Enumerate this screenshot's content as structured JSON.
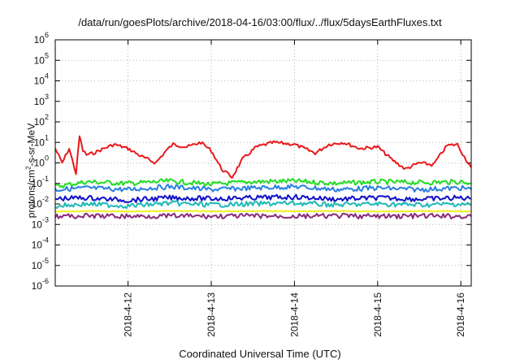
{
  "chart_data": {
    "type": "line",
    "title": "/data/run/goesPlots/archive/2018-04-16/03:00/flux/../flux/5daysEarthFluxes.txt",
    "xlabel": "Coordinated Universal Time (UTC)",
    "ylabel_prefix": "protons/cm",
    "ylabel_sup": "2",
    "ylabel_suffix": "-s-sr-MeV",
    "yscale": "log",
    "ylim": [
      1e-06,
      1000000.0
    ],
    "y_ticks": [
      {
        "base": "10",
        "exp": "-6",
        "value": 1e-06
      },
      {
        "base": "10",
        "exp": "-5",
        "value": 1e-05
      },
      {
        "base": "10",
        "exp": "-4",
        "value": 0.0001
      },
      {
        "base": "10",
        "exp": "-3",
        "value": 0.001
      },
      {
        "base": "10",
        "exp": "-2",
        "value": 0.01
      },
      {
        "base": "10",
        "exp": "-1",
        "value": 0.1
      },
      {
        "base": "10",
        "exp": "0",
        "value": 1
      },
      {
        "base": "10",
        "exp": "1",
        "value": 10
      },
      {
        "base": "10",
        "exp": "2",
        "value": 100
      },
      {
        "base": "10",
        "exp": "3",
        "value": 1000
      },
      {
        "base": "10",
        "exp": "4",
        "value": 10000
      },
      {
        "base": "10",
        "exp": "5",
        "value": 100000
      },
      {
        "base": "10",
        "exp": "6",
        "value": 1000000
      }
    ],
    "xlim": [
      "2018-04-11T03:00",
      "2018-04-16T03:00"
    ],
    "x_ticks": [
      {
        "label": "2018-4-12",
        "value": "2018-04-12T00:00"
      },
      {
        "label": "2018-4-13",
        "value": "2018-04-13T00:00"
      },
      {
        "label": "2018-4-14",
        "value": "2018-04-14T00:00"
      },
      {
        "label": "2018-4-15",
        "value": "2018-04-15T00:00"
      },
      {
        "label": "2018-4-16",
        "value": "2018-04-16T00:00"
      }
    ],
    "grid": true,
    "series": [
      {
        "color": "#e8191c",
        "width": 2,
        "x": [
          "2018-04-11T03:00",
          "2018-04-11T05:00",
          "2018-04-11T07:00",
          "2018-04-11T09:00",
          "2018-04-11T10:00",
          "2018-04-11T11:00",
          "2018-04-11T12:00",
          "2018-04-11T14:00",
          "2018-04-11T17:00",
          "2018-04-11T20:00",
          "2018-04-12T00:00",
          "2018-04-12T04:00",
          "2018-04-12T08:00",
          "2018-04-12T11:00",
          "2018-04-12T13:00",
          "2018-04-12T17:00",
          "2018-04-12T21:00",
          "2018-04-13T00:00",
          "2018-04-13T03:00",
          "2018-04-13T06:00",
          "2018-04-13T09:00",
          "2018-04-13T13:00",
          "2018-04-13T18:00",
          "2018-04-14T00:00",
          "2018-04-14T06:00",
          "2018-04-14T10:00",
          "2018-04-14T14:00",
          "2018-04-14T19:00",
          "2018-04-15T00:00",
          "2018-04-15T04:00",
          "2018-04-15T08:00",
          "2018-04-15T12:00",
          "2018-04-15T16:00",
          "2018-04-15T20:00",
          "2018-04-15T23:00",
          "2018-04-16T01:00",
          "2018-04-16T03:00"
        ],
        "y": [
          5.0,
          1.0,
          5.0,
          0.3,
          20,
          4.0,
          2.5,
          3.0,
          5.0,
          8.0,
          5.0,
          2.0,
          1.0,
          4.0,
          8.0,
          6.0,
          10,
          4.0,
          0.5,
          0.2,
          1.5,
          6.0,
          10,
          8.0,
          3.0,
          8.0,
          10,
          5.0,
          6.0,
          1.5,
          0.5,
          1.0,
          0.8,
          7.0,
          8.0,
          2.0,
          0.6
        ]
      },
      {
        "color": "#22dd22",
        "width": 2,
        "x": [
          "2018-04-11T03:00",
          "2018-04-11T12:00",
          "2018-04-12T00:00",
          "2018-04-12T12:00",
          "2018-04-13T00:00",
          "2018-04-13T12:00",
          "2018-04-14T00:00",
          "2018-04-14T12:00",
          "2018-04-15T00:00",
          "2018-04-15T12:00",
          "2018-04-16T00:00",
          "2018-04-16T03:00"
        ],
        "y": [
          0.07,
          0.12,
          0.1,
          0.13,
          0.09,
          0.12,
          0.13,
          0.1,
          0.12,
          0.11,
          0.12,
          0.1
        ]
      },
      {
        "color": "#2a7fe0",
        "width": 2,
        "x": [
          "2018-04-11T03:00",
          "2018-04-11T12:00",
          "2018-04-12T00:00",
          "2018-04-12T12:00",
          "2018-04-13T00:00",
          "2018-04-13T12:00",
          "2018-04-14T00:00",
          "2018-04-14T12:00",
          "2018-04-15T00:00",
          "2018-04-15T12:00",
          "2018-04-16T00:00",
          "2018-04-16T03:00"
        ],
        "y": [
          0.05,
          0.06,
          0.05,
          0.07,
          0.05,
          0.06,
          0.07,
          0.05,
          0.06,
          0.05,
          0.06,
          0.05
        ]
      },
      {
        "color": "#1010c8",
        "width": 2,
        "x": [
          "2018-04-11T03:00",
          "2018-04-11T12:00",
          "2018-04-12T00:00",
          "2018-04-12T12:00",
          "2018-04-13T00:00",
          "2018-04-13T12:00",
          "2018-04-14T00:00",
          "2018-04-14T12:00",
          "2018-04-15T00:00",
          "2018-04-15T12:00",
          "2018-04-16T00:00",
          "2018-04-16T03:00"
        ],
        "y": [
          0.018,
          0.02,
          0.015,
          0.02,
          0.018,
          0.02,
          0.022,
          0.017,
          0.02,
          0.017,
          0.02,
          0.018
        ]
      },
      {
        "color": "#20b8b8",
        "width": 2,
        "x": [
          "2018-04-11T03:00",
          "2018-04-11T12:00",
          "2018-04-12T00:00",
          "2018-04-12T12:00",
          "2018-04-13T00:00",
          "2018-04-13T12:00",
          "2018-04-14T00:00",
          "2018-04-14T12:00",
          "2018-04-15T00:00",
          "2018-04-15T12:00",
          "2018-04-16T00:00",
          "2018-04-16T03:00"
        ],
        "y": [
          0.008,
          0.01,
          0.008,
          0.011,
          0.009,
          0.01,
          0.011,
          0.009,
          0.01,
          0.009,
          0.01,
          0.009
        ]
      },
      {
        "color": "#f0f020",
        "width": 2,
        "x": [
          "2018-04-11T03:00",
          "2018-04-11T12:00",
          "2018-04-12T00:00",
          "2018-04-12T12:00",
          "2018-04-13T00:00",
          "2018-04-13T12:00",
          "2018-04-14T00:00",
          "2018-04-14T12:00",
          "2018-04-15T00:00",
          "2018-04-15T12:00",
          "2018-04-16T00:00",
          "2018-04-16T03:00"
        ],
        "y": [
          0.0042,
          0.0045,
          0.0043,
          0.0045,
          0.0044,
          0.0045,
          0.0044,
          0.0045,
          0.0043,
          0.0045,
          0.0044,
          0.0044
        ]
      },
      {
        "color": "#8b2b7a",
        "width": 2,
        "x": [
          "2018-04-11T03:00",
          "2018-04-11T12:00",
          "2018-04-12T00:00",
          "2018-04-12T12:00",
          "2018-04-13T00:00",
          "2018-04-13T12:00",
          "2018-04-14T00:00",
          "2018-04-14T12:00",
          "2018-04-15T00:00",
          "2018-04-15T12:00",
          "2018-04-16T00:00",
          "2018-04-16T03:00"
        ],
        "y": [
          0.0025,
          0.0026,
          0.0025,
          0.0026,
          0.0025,
          0.0026,
          0.0025,
          0.0026,
          0.0025,
          0.0026,
          0.0025,
          0.0025
        ]
      }
    ]
  }
}
